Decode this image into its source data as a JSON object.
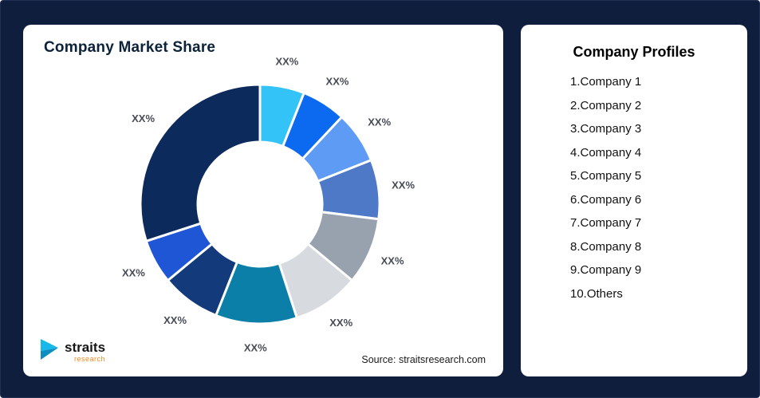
{
  "page": {
    "background": "#0E1E3C"
  },
  "left_card": {
    "title": "Company Market Share",
    "source": "Source: straitsresearch.com",
    "logo": {
      "name": "straits",
      "sub": "research"
    }
  },
  "right_card": {
    "title": "Company Profiles",
    "items": [
      "1.Company 1",
      "2.Company 2",
      "3.Company 3",
      "4.Company 4",
      "5.Company 5",
      "6.Company 6",
      "7.Company 7",
      "8.Company 8",
      "9.Company 9",
      "10.Others"
    ]
  },
  "chart_data": {
    "type": "pie",
    "subtype": "donut",
    "title": "Company Market Share",
    "note": "All slice data labels read XX% (placeholder); values are estimated from slice angles.",
    "legend_position": "none",
    "inner_radius_ratio": 0.52,
    "segments": [
      {
        "label": "XX%",
        "value_est_pct": 6,
        "color": "#33C3F7",
        "name": "Company 1"
      },
      {
        "label": "XX%",
        "value_est_pct": 6,
        "color": "#0B6AEF",
        "name": "Company 2"
      },
      {
        "label": "XX%",
        "value_est_pct": 7,
        "color": "#5E9BF5",
        "name": "Company 3"
      },
      {
        "label": "XX%",
        "value_est_pct": 8,
        "color": "#4D79C7",
        "name": "Company 4"
      },
      {
        "label": "XX%",
        "value_est_pct": 9,
        "color": "#98A1AE",
        "name": "Company 5"
      },
      {
        "label": "XX%",
        "value_est_pct": 9,
        "color": "#D7DADF",
        "name": "Company 6"
      },
      {
        "label": "XX%",
        "value_est_pct": 11,
        "color": "#0B7FA8",
        "name": "Company 7"
      },
      {
        "label": "XX%",
        "value_est_pct": 8,
        "color": "#133A7B",
        "name": "Company 8"
      },
      {
        "label": "XX%",
        "value_est_pct": 6,
        "color": "#1E56D6",
        "name": "Company 9"
      },
      {
        "label": "XX%",
        "value_est_pct": 30,
        "color": "#0C2A5C",
        "name": "Others"
      }
    ],
    "label_color": "#474b55",
    "source": "Source: straitsresearch.com"
  }
}
